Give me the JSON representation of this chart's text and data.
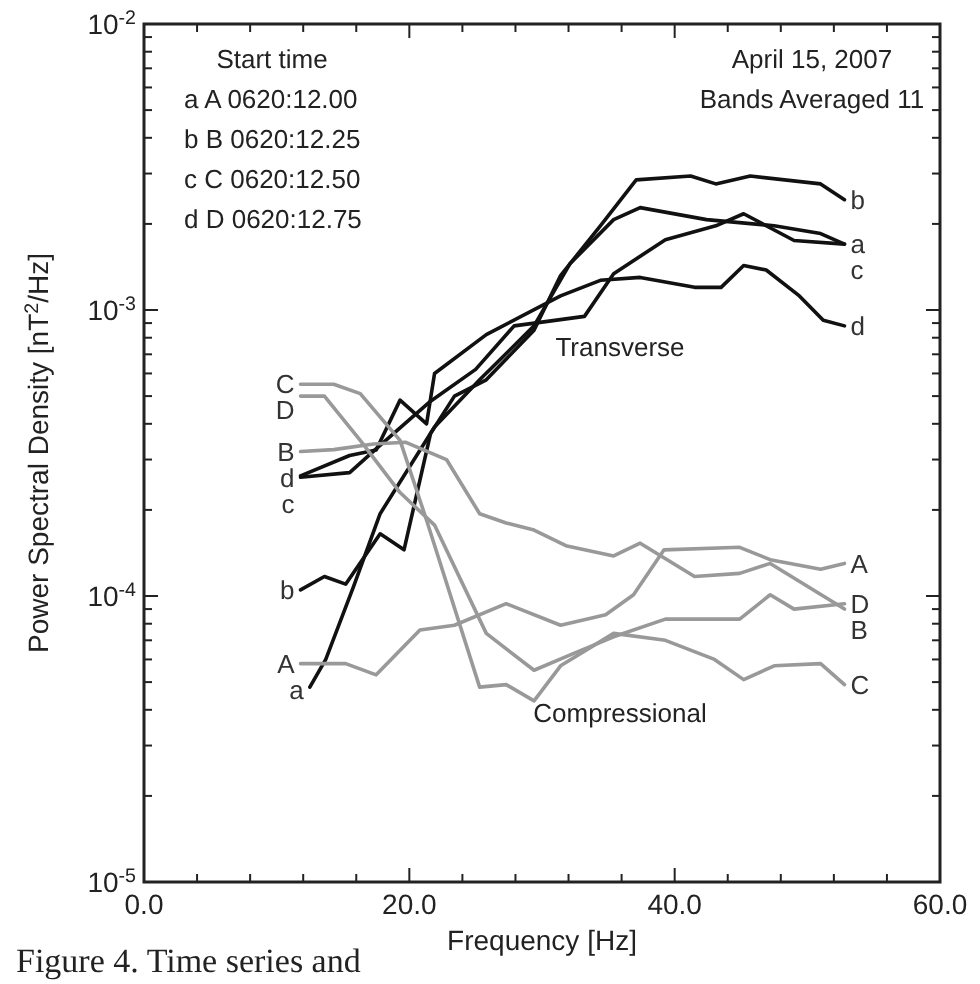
{
  "chart_data": {
    "type": "line",
    "xlabel": "Frequency [Hz]",
    "ylabel": "Power Spectral Density [nT$^{2}$/Hz]",
    "log": "y",
    "xlim": [
      0,
      60
    ],
    "ylim": [
      1e-05,
      0.01
    ],
    "xticks": [
      {
        "value": 0,
        "label": "0.0"
      },
      {
        "value": 4,
        "label": null
      },
      {
        "value": 8,
        "label": null
      },
      {
        "value": 12,
        "label": null
      },
      {
        "value": 16,
        "label": null
      },
      {
        "value": 20,
        "label": "20.0"
      },
      {
        "value": 24,
        "label": null
      },
      {
        "value": 28,
        "label": null
      },
      {
        "value": 32,
        "label": null
      },
      {
        "value": 36,
        "label": null
      },
      {
        "value": 40,
        "label": "40.0"
      },
      {
        "value": 44,
        "label": null
      },
      {
        "value": 48,
        "label": null
      },
      {
        "value": 52,
        "label": null
      },
      {
        "value": 56,
        "label": null
      },
      {
        "value": 60,
        "label": "60.0"
      }
    ],
    "yticks": [
      {
        "value": 1e-05,
        "label": "10$^{-5}$"
      },
      {
        "value": 2e-05,
        "label": null
      },
      {
        "value": 3e-05,
        "label": null
      },
      {
        "value": 4e-05,
        "label": null
      },
      {
        "value": 5e-05,
        "label": null
      },
      {
        "value": 6e-05,
        "label": null
      },
      {
        "value": 7e-05,
        "label": null
      },
      {
        "value": 8e-05,
        "label": null
      },
      {
        "value": 9e-05,
        "label": null
      },
      {
        "value": 0.0001,
        "label": "10$^{-4}$"
      },
      {
        "value": 0.0002,
        "label": null
      },
      {
        "value": 0.0003,
        "label": null
      },
      {
        "value": 0.0004,
        "label": null
      },
      {
        "value": 0.0005,
        "label": null
      },
      {
        "value": 0.0006,
        "label": null
      },
      {
        "value": 0.0007,
        "label": null
      },
      {
        "value": 0.0008,
        "label": null
      },
      {
        "value": 0.0009,
        "label": null
      },
      {
        "value": 0.001,
        "label": "10$^{-3}$"
      },
      {
        "value": 0.002,
        "label": null
      },
      {
        "value": 0.003,
        "label": null
      },
      {
        "value": 0.004,
        "label": null
      },
      {
        "value": 0.005,
        "label": null
      },
      {
        "value": 0.006,
        "label": null
      },
      {
        "value": 0.007,
        "label": null
      },
      {
        "value": 0.008,
        "label": null
      },
      {
        "value": 0.009,
        "label": null
      },
      {
        "value": 0.01,
        "label": "10$^{-2}$"
      }
    ],
    "series": [
      {
        "name": "a",
        "color": "#111111",
        "x": [
          12.5,
          13.7,
          15.8,
          17.8,
          21.9,
          25.3,
          29.4,
          32.1,
          35.4,
          37.4,
          42.4,
          47.5,
          51.0,
          52.8
        ],
        "values": [
          4.8e-05,
          6e-05,
          0.000108,
          0.000194,
          0.00039,
          0.00057,
          0.00088,
          0.00145,
          0.00207,
          0.00228,
          0.00207,
          0.00197,
          0.00185,
          0.0017
        ]
      },
      {
        "name": "b",
        "color": "#111111",
        "x": [
          11.8,
          13.6,
          15.2,
          17.8,
          19.6,
          21.6,
          23.4,
          25.8,
          29.4,
          31.4,
          34.4,
          37.1,
          41.2,
          43.1,
          45.7,
          51.0,
          52.8
        ],
        "values": [
          0.000105,
          0.000117,
          0.00011,
          0.000165,
          0.000145,
          0.00037,
          0.0005,
          0.00057,
          0.00085,
          0.00132,
          0.00197,
          0.00285,
          0.00294,
          0.00276,
          0.00294,
          0.00276,
          0.00243
        ]
      },
      {
        "name": "c",
        "color": "#111111",
        "x": [
          11.8,
          15.5,
          17.6,
          21.6,
          25.0,
          27.9,
          33.2,
          35.4,
          39.3,
          43.1,
          45.2,
          49.0,
          52.8
        ],
        "values": [
          0.00026,
          0.00027,
          0.00033,
          0.00048,
          0.00062,
          0.00088,
          0.00095,
          0.00134,
          0.00176,
          0.00197,
          0.00217,
          0.00175,
          0.0017
        ]
      },
      {
        "name": "d",
        "color": "#111111",
        "x": [
          11.8,
          15.5,
          17.5,
          19.3,
          21.3,
          21.9,
          25.8,
          31.4,
          34.4,
          37.4,
          41.5,
          43.5,
          45.2,
          46.9,
          49.4,
          51.2,
          52.8
        ],
        "values": [
          0.000263,
          0.00031,
          0.000324,
          0.000484,
          0.0004,
          0.0006,
          0.00082,
          0.00112,
          0.00127,
          0.0013,
          0.0012,
          0.0012,
          0.00143,
          0.00138,
          0.00112,
          0.00092,
          0.00088
        ]
      },
      {
        "name": "A",
        "color": "#999999",
        "x": [
          11.8,
          15.2,
          17.5,
          20.8,
          23.4,
          27.3,
          31.4,
          34.8,
          36.9,
          39.2,
          44.9,
          47.2,
          51.0,
          52.8
        ],
        "values": [
          5.8e-05,
          5.8e-05,
          5.3e-05,
          7.6e-05,
          7.9e-05,
          9.4e-05,
          7.9e-05,
          8.6e-05,
          0.000101,
          0.000145,
          0.000148,
          0.000134,
          0.000124,
          0.00013
        ]
      },
      {
        "name": "B",
        "color": "#999999",
        "x": [
          11.8,
          14.3,
          17.3,
          19.7,
          22.8,
          25.3,
          27.3,
          29.4,
          31.8,
          35.4,
          37.4,
          41.5,
          44.9,
          47.2,
          52.8
        ],
        "values": [
          0.00032,
          0.000325,
          0.00034,
          0.000345,
          0.0003,
          0.000194,
          0.00018,
          0.00017,
          0.00015,
          0.000138,
          0.000153,
          0.000117,
          0.00012,
          0.00013,
          9e-05
        ]
      },
      {
        "name": "C",
        "color": "#999999",
        "x": [
          11.8,
          14.3,
          16.3,
          19.3,
          21.3,
          25.3,
          27.3,
          29.4,
          31.4,
          35.4,
          39.3,
          43.0,
          45.2,
          47.5,
          51.0,
          52.8
        ],
        "values": [
          0.00055,
          0.00055,
          0.00051,
          0.00035,
          0.000184,
          4.8e-05,
          4.9e-05,
          4.3e-05,
          5.7e-05,
          7.4e-05,
          7e-05,
          6e-05,
          5.1e-05,
          5.7e-05,
          5.8e-05,
          4.9e-05
        ]
      },
      {
        "name": "D",
        "color": "#999999",
        "x": [
          11.8,
          13.6,
          16.3,
          19.3,
          21.9,
          25.8,
          29.4,
          32.4,
          35.4,
          39.3,
          44.9,
          47.2,
          49.0,
          52.8
        ],
        "values": [
          0.0005,
          0.0005,
          0.00035,
          0.00023,
          0.000177,
          7.4e-05,
          5.5e-05,
          6.3e-05,
          7.2e-05,
          8.3e-05,
          8.3e-05,
          0.000101,
          9e-05,
          9.4e-05
        ]
      }
    ],
    "annotations": [
      "Start time",
      "a A  0620:12.00",
      "b B  0620:12.25",
      "c C  0620:12.50",
      "d D  0620:12.75",
      "April 15, 2007",
      "Bands Averaged 11",
      "Transverse",
      "Compressional",
      "Figure 4. Time series and"
    ]
  }
}
